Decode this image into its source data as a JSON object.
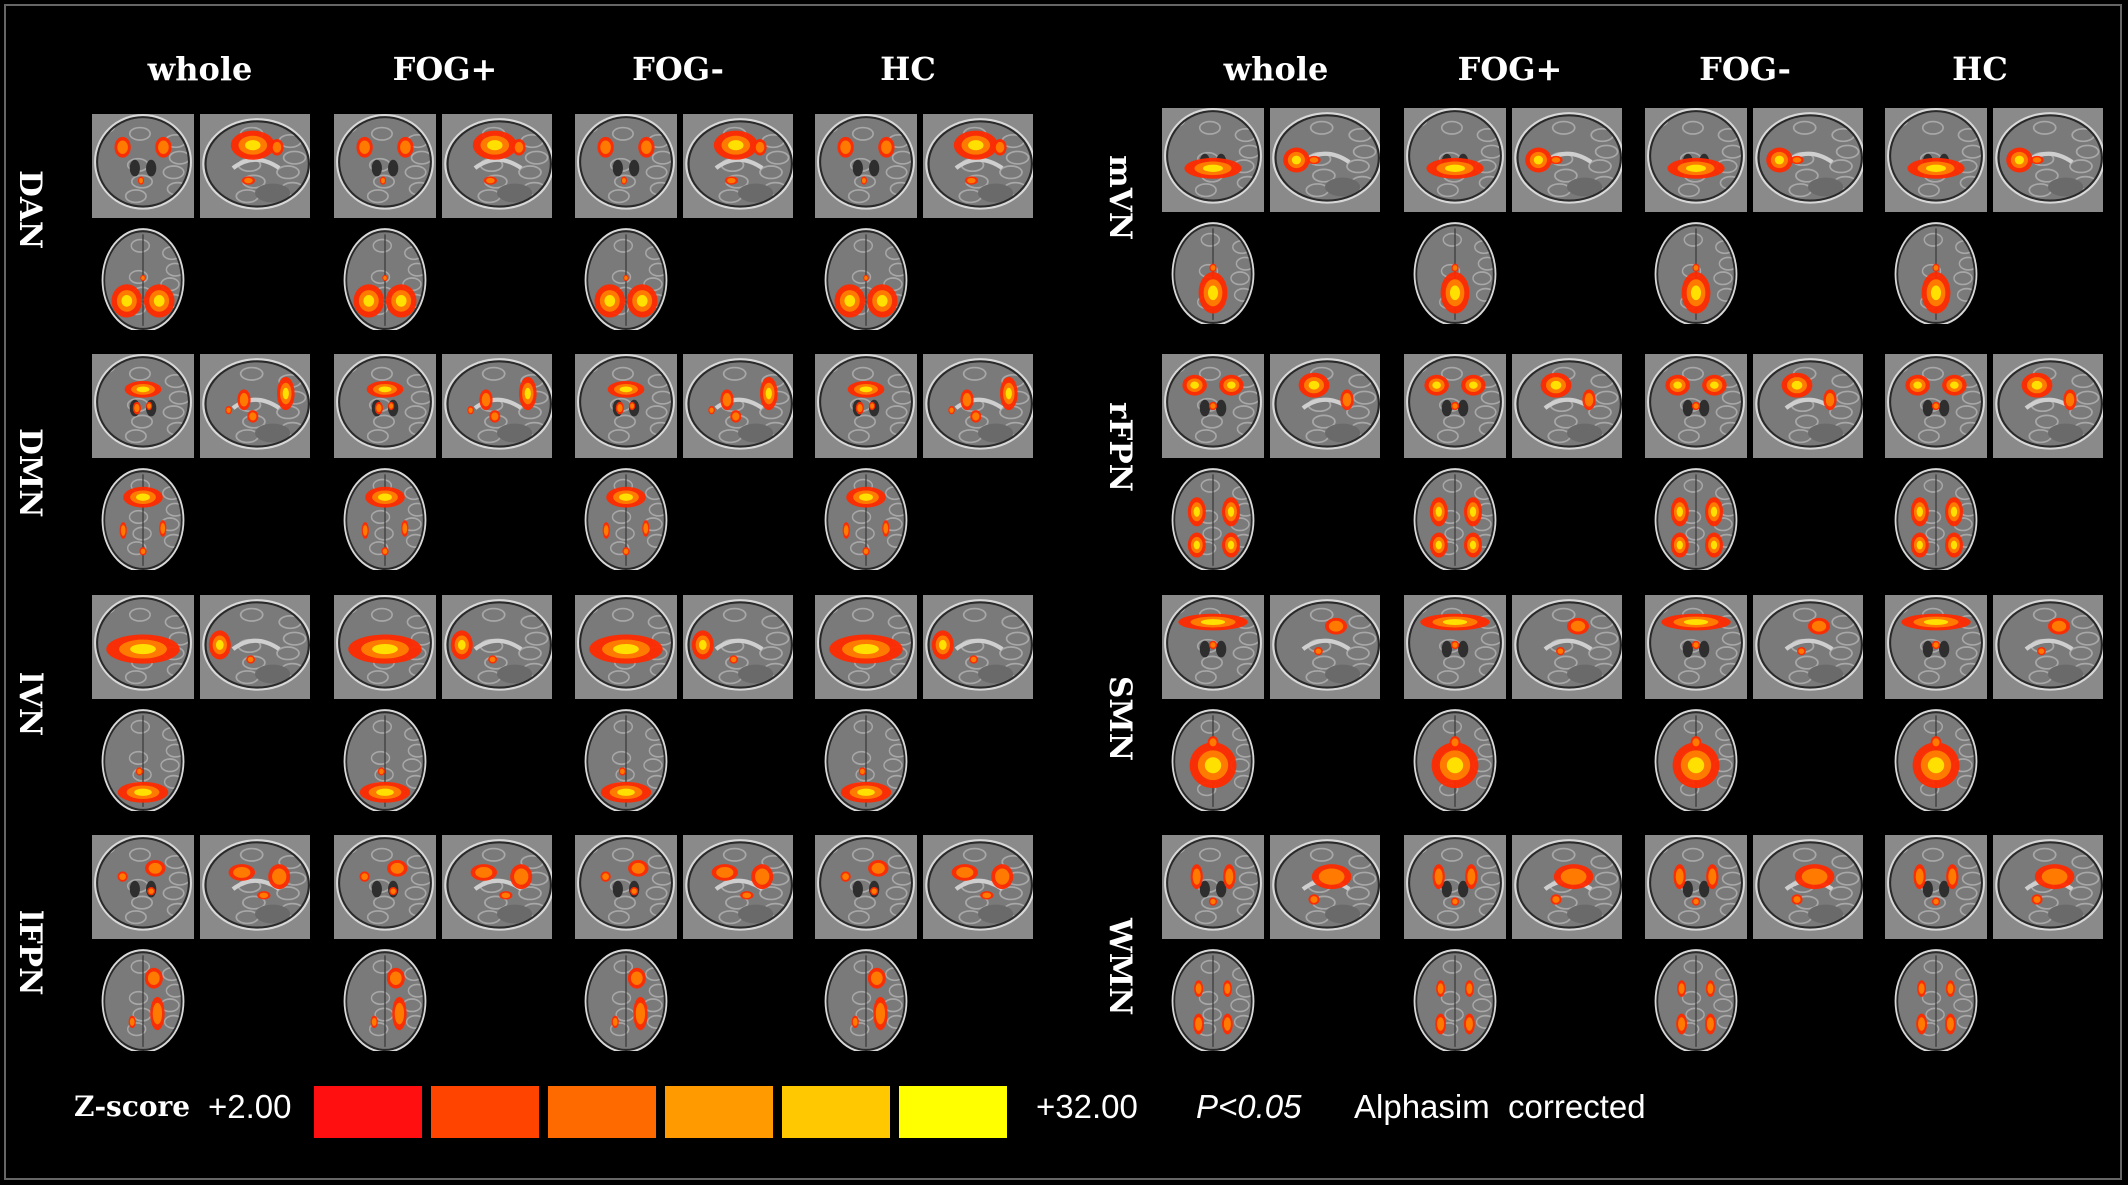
{
  "panels": [
    {
      "column_headers": [
        "whole",
        "FOG+",
        "FOG-",
        "HC"
      ],
      "networks": [
        {
          "label": "DAN",
          "views": [
            "coronal",
            "sagittal",
            "axial"
          ]
        },
        {
          "label": "DMN",
          "views": [
            "coronal",
            "sagittal",
            "axial"
          ]
        },
        {
          "label": "lVN",
          "views": [
            "coronal",
            "sagittal",
            "axial"
          ]
        },
        {
          "label": "lFPN",
          "views": [
            "coronal",
            "sagittal",
            "axial"
          ]
        }
      ]
    },
    {
      "column_headers": [
        "whole",
        "FOG+",
        "FOG-",
        "HC"
      ],
      "networks": [
        {
          "label": "mVN",
          "views": [
            "coronal",
            "sagittal",
            "axial"
          ]
        },
        {
          "label": "rFPN",
          "views": [
            "coronal",
            "sagittal",
            "axial"
          ]
        },
        {
          "label": "SMN",
          "views": [
            "coronal",
            "sagittal",
            "axial"
          ]
        },
        {
          "label": "WMN",
          "views": [
            "coronal",
            "sagittal",
            "axial"
          ]
        }
      ]
    }
  ],
  "legend": {
    "scale_label": "Z-score",
    "min_label": "+2.00",
    "max_label": "+32.00",
    "colors": [
      "#ff0f0f",
      "#ff4400",
      "#ff6a00",
      "#ff9a00",
      "#ffc800",
      "#ffff00"
    ],
    "p_label": "P<0.05",
    "correction_label": "Alphasim  corrected"
  }
}
